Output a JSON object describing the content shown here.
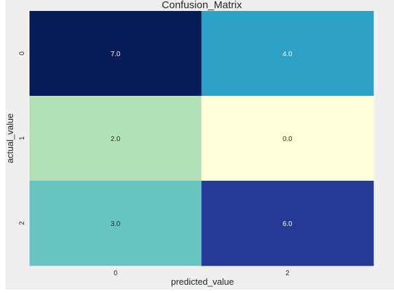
{
  "chart_data": {
    "type": "heatmap",
    "title": "Confusion_Matrix",
    "xlabel": "predicted_value",
    "ylabel": "actual_value",
    "x_categories": [
      "0",
      "2"
    ],
    "y_categories": [
      "0",
      "1",
      "2"
    ],
    "values": [
      [
        7.0,
        4.0
      ],
      [
        2.0,
        0.0
      ],
      [
        3.0,
        6.0
      ]
    ],
    "value_labels": [
      [
        "7.0",
        "4.0"
      ],
      [
        "2.0",
        "0.0"
      ],
      [
        "3.0",
        "6.0"
      ]
    ],
    "colormap": "YlGnBu",
    "vmin": 0,
    "vmax": 7,
    "colorbar": false,
    "grid": false,
    "cell_colors": [
      [
        "#081d58",
        "#2ea1c6"
      ],
      [
        "#b3e1b6",
        "#ffffd9"
      ],
      [
        "#67c4c0",
        "#243a94"
      ]
    ],
    "annotation_colors": [
      [
        "#ffffff",
        "#ffffff"
      ],
      [
        "#262626",
        "#262626"
      ],
      [
        "#262626",
        "#ffffff"
      ]
    ],
    "background_color": "#efefef",
    "text_color": "#262626"
  }
}
